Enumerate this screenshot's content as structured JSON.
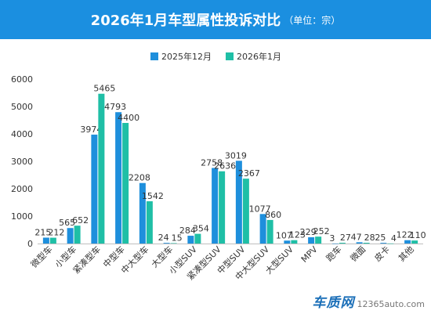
{
  "header": {
    "title": "2026年1月车型属性投诉对比",
    "subtitle": "（单位：宗）"
  },
  "watermark": {
    "logo": "车质网",
    "url": "12365auto.com"
  },
  "colors": {
    "header_bg": "#1b8fe0",
    "series1": "#1e8fdc",
    "series2": "#1fbfa6"
  },
  "chart_data": {
    "type": "bar",
    "title": "2026年1月车型属性投诉对比",
    "subtitle": "（单位：宗）",
    "xlabel": "",
    "ylabel": "",
    "ylim": [
      0,
      6000
    ],
    "yticks": [
      0,
      1000,
      2000,
      3000,
      4000,
      5000,
      6000
    ],
    "grid": false,
    "legend_position": "top",
    "categories": [
      "微型车",
      "小型车",
      "紧凑型车",
      "中型车",
      "中大型车",
      "大型车",
      "小型SUV",
      "紧凑型SUV",
      "中型SUV",
      "中大型SUV",
      "大型SUV",
      "MPV",
      "跑车",
      "微面",
      "皮卡",
      "其他"
    ],
    "series": [
      {
        "name": "2025年12月",
        "color": "#1e8fdc",
        "values": [
          215,
          565,
          3974,
          4793,
          2208,
          24,
          284,
          2758,
          3019,
          1077,
          107,
          229,
          3,
          47,
          25,
          122
        ]
      },
      {
        "name": "2026年1月",
        "color": "#1fbfa6",
        "values": [
          212,
          652,
          5465,
          4400,
          1542,
          15,
          354,
          2636,
          2367,
          860,
          123,
          252,
          27,
          28,
          4,
          110
        ]
      }
    ]
  }
}
